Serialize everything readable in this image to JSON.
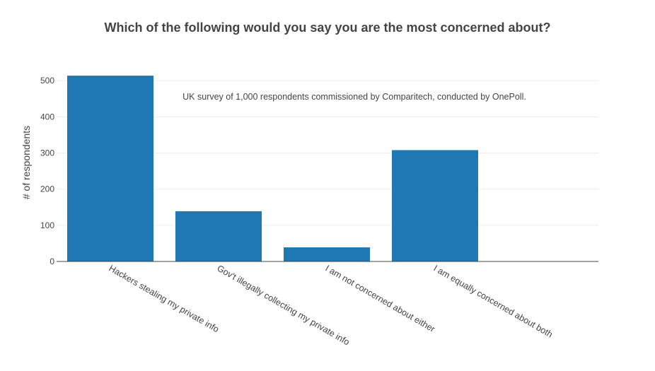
{
  "chart_data": {
    "type": "bar",
    "title": "Which of the following would you say you are the most concerned about?",
    "annotation": "UK survey of 1,000 respondents commissioned by Comparitech, conducted by OnePoll.",
    "ylabel": "# of respondents",
    "xlabel": "",
    "categories": [
      "Hackers stealing my private info",
      "Gov't illegally collecting my private info",
      "I am not concerned about either",
      "I am equally concerned about both"
    ],
    "values": [
      514,
      139,
      39,
      308
    ],
    "ylim": [
      0,
      520
    ],
    "yticks": [
      0,
      100,
      200,
      300,
      400,
      500
    ],
    "grid": true,
    "legend": "none",
    "colors": {
      "bar": "#1f77b4",
      "grid": "#eeeeee",
      "axis": "#444444",
      "text": "#444444"
    }
  }
}
